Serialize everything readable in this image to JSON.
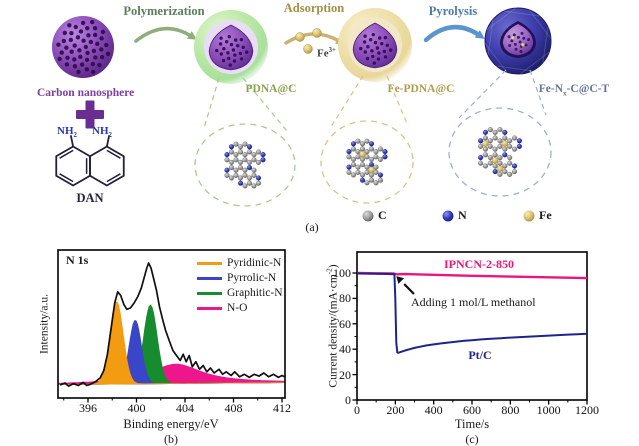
{
  "figure": {
    "panel_labels": {
      "a": "(a)",
      "b": "(b)",
      "c": "(c)"
    }
  },
  "schematic": {
    "reactant_label": "Carbon nanosphere",
    "plus": "+",
    "molecule": {
      "name": "DAN",
      "amine": {
        "base": "NH",
        "sub": "2"
      }
    },
    "arrows": [
      {
        "label": "Polymerization",
        "color": "#5c7d5c"
      },
      {
        "label": "Adsorption",
        "color": "#a38f45",
        "ion": {
          "base": "Fe",
          "sup": "3+"
        }
      },
      {
        "label": "Pyrolysis",
        "color": "#4b7cab"
      }
    ],
    "products": [
      {
        "label": "PDNA@C",
        "color": "#8aa34e"
      },
      {
        "label": "Fe-PDNA@C",
        "color": "#b39b4e"
      },
      {
        "label": {
          "pre": "Fe-N",
          "sub": "x",
          "post": "-C@C-T"
        },
        "color": "#64749c"
      }
    ],
    "atom_legend": [
      {
        "symbol": "C",
        "color": "#8c8c8c"
      },
      {
        "symbol": "N",
        "color": "#2e38b8"
      },
      {
        "symbol": "Fe",
        "color": "#d6bd6e"
      }
    ],
    "sphere_colors": {
      "core_purple": "#8b4bb8",
      "shell_green": "#a8e09a",
      "shell_tan": "#ecdca2",
      "pyrolyzed_blue": "#34349c"
    }
  },
  "chart_data": [
    {
      "id": "b",
      "type": "area",
      "title": "N 1s",
      "xlabel": "Binding energy/eV",
      "ylabel": "Intensity/a.u.",
      "xlim": [
        393.5,
        412.3
      ],
      "x_ticks": [
        396,
        400,
        404,
        408,
        412
      ],
      "grid": false,
      "legend_position": "top-right",
      "envelope_color": "#101010",
      "components": [
        {
          "name": "Pyridinic-N",
          "color": "#f39c12",
          "center": 398.35,
          "amplitude": 0.66,
          "sigma": 0.55
        },
        {
          "name": "Pyrrolic-N",
          "color": "#3a46c8",
          "center": 399.9,
          "amplitude": 0.51,
          "sigma": 0.5
        },
        {
          "name": "Graphitic-N",
          "color": "#168c2f",
          "center": 401.15,
          "amplitude": 0.63,
          "sigma": 0.55
        },
        {
          "name": "N-O",
          "color": "#ee168c",
          "center": 403.25,
          "amplitude": 0.155,
          "gamma": 2.6,
          "shape": "lorentzian"
        }
      ],
      "envelope_norm": [
        [
          393.7,
          0.025
        ],
        [
          394.1,
          0.04
        ],
        [
          394.4,
          0.015
        ],
        [
          394.8,
          0.035
        ],
        [
          395.2,
          0.02
        ],
        [
          395.6,
          0.045
        ],
        [
          395.9,
          0.02
        ],
        [
          396.2,
          0.03
        ],
        [
          396.6,
          0.05
        ],
        [
          397.0,
          0.08
        ],
        [
          397.3,
          0.14
        ],
        [
          397.6,
          0.27
        ],
        [
          397.9,
          0.47
        ],
        [
          398.2,
          0.68
        ],
        [
          398.45,
          0.77
        ],
        [
          398.7,
          0.74
        ],
        [
          398.95,
          0.67
        ],
        [
          399.2,
          0.63
        ],
        [
          399.5,
          0.64
        ],
        [
          399.8,
          0.68
        ],
        [
          400.1,
          0.73
        ],
        [
          400.4,
          0.8
        ],
        [
          400.65,
          0.89
        ],
        [
          400.85,
          0.96
        ],
        [
          401.0,
          1.0
        ],
        [
          401.2,
          0.96
        ],
        [
          401.4,
          0.88
        ],
        [
          401.65,
          0.78
        ],
        [
          401.9,
          0.65
        ],
        [
          402.15,
          0.55
        ],
        [
          402.4,
          0.46
        ],
        [
          402.7,
          0.38
        ],
        [
          403.0,
          0.3
        ],
        [
          403.3,
          0.26
        ],
        [
          403.6,
          0.22
        ],
        [
          403.85,
          0.27
        ],
        [
          404.1,
          0.21
        ],
        [
          404.35,
          0.26
        ],
        [
          404.6,
          0.17
        ],
        [
          404.9,
          0.21
        ],
        [
          405.2,
          0.15
        ],
        [
          405.5,
          0.18
        ],
        [
          405.8,
          0.13
        ],
        [
          406.1,
          0.16
        ],
        [
          406.4,
          0.12
        ],
        [
          406.8,
          0.15
        ],
        [
          407.1,
          0.11
        ],
        [
          407.4,
          0.13
        ],
        [
          407.8,
          0.1
        ],
        [
          408.1,
          0.13
        ],
        [
          408.5,
          0.09
        ],
        [
          408.9,
          0.11
        ],
        [
          409.3,
          0.085
        ],
        [
          409.7,
          0.11
        ],
        [
          410.1,
          0.095
        ],
        [
          410.5,
          0.12
        ],
        [
          410.9,
          0.09
        ],
        [
          411.3,
          0.11
        ],
        [
          411.7,
          0.085
        ],
        [
          412.0,
          0.1
        ],
        [
          412.2,
          0.09
        ]
      ]
    },
    {
      "id": "c",
      "type": "line",
      "xlabel": "Time/s",
      "ylabel": {
        "pre": "Current density/(mA·cm",
        "sup": "-2",
        "post": ")"
      },
      "xlim": [
        0,
        1200
      ],
      "ylim": [
        0,
        116
      ],
      "x_ticks": [
        0,
        200,
        400,
        600,
        800,
        1000,
        1200
      ],
      "y_ticks": [
        0,
        20,
        40,
        60,
        80,
        100
      ],
      "grid": false,
      "annotation": {
        "text": "Adding 1 mol/L methanol",
        "arrow_to_time": 215,
        "arrow_to_current": 96
      },
      "series": [
        {
          "name": "IPNCN-2-850",
          "color": "#e8177c",
          "points": [
            [
              0,
              100
            ],
            [
              100,
              99.8
            ],
            [
              190,
              99.6
            ],
            [
              210,
              99.0
            ],
            [
              250,
              99.2
            ],
            [
              300,
              99.0
            ],
            [
              400,
              98.6
            ],
            [
              500,
              98.2
            ],
            [
              600,
              97.8
            ],
            [
              700,
              97.5
            ],
            [
              800,
              97.2
            ],
            [
              900,
              96.9
            ],
            [
              1000,
              96.6
            ],
            [
              1100,
              96.3
            ],
            [
              1200,
              96.0
            ]
          ]
        },
        {
          "name": "Pt/C",
          "color": "#1c2490",
          "points": [
            [
              0,
              99.6
            ],
            [
              40,
              99.5
            ],
            [
              80,
              99.4
            ],
            [
              120,
              99.3
            ],
            [
              160,
              99.2
            ],
            [
              195,
              99.0
            ],
            [
              200,
              80
            ],
            [
              205,
              45
            ],
            [
              210,
              37.5
            ],
            [
              215,
              37.2
            ],
            [
              225,
              37.6
            ],
            [
              240,
              38.4
            ],
            [
              260,
              39.4
            ],
            [
              280,
              40.2
            ],
            [
              300,
              41.0
            ],
            [
              330,
              42.0
            ],
            [
              360,
              42.9
            ],
            [
              400,
              43.8
            ],
            [
              440,
              44.6
            ],
            [
              480,
              45.3
            ],
            [
              520,
              46.0
            ],
            [
              560,
              46.6
            ],
            [
              600,
              47.1
            ],
            [
              650,
              47.7
            ],
            [
              700,
              48.2
            ],
            [
              750,
              48.7
            ],
            [
              800,
              49.1
            ],
            [
              850,
              49.5
            ],
            [
              900,
              49.9
            ],
            [
              950,
              50.3
            ],
            [
              1000,
              50.7
            ],
            [
              1050,
              51.1
            ],
            [
              1100,
              51.5
            ],
            [
              1150,
              51.8
            ],
            [
              1200,
              52.1
            ]
          ]
        }
      ]
    }
  ]
}
